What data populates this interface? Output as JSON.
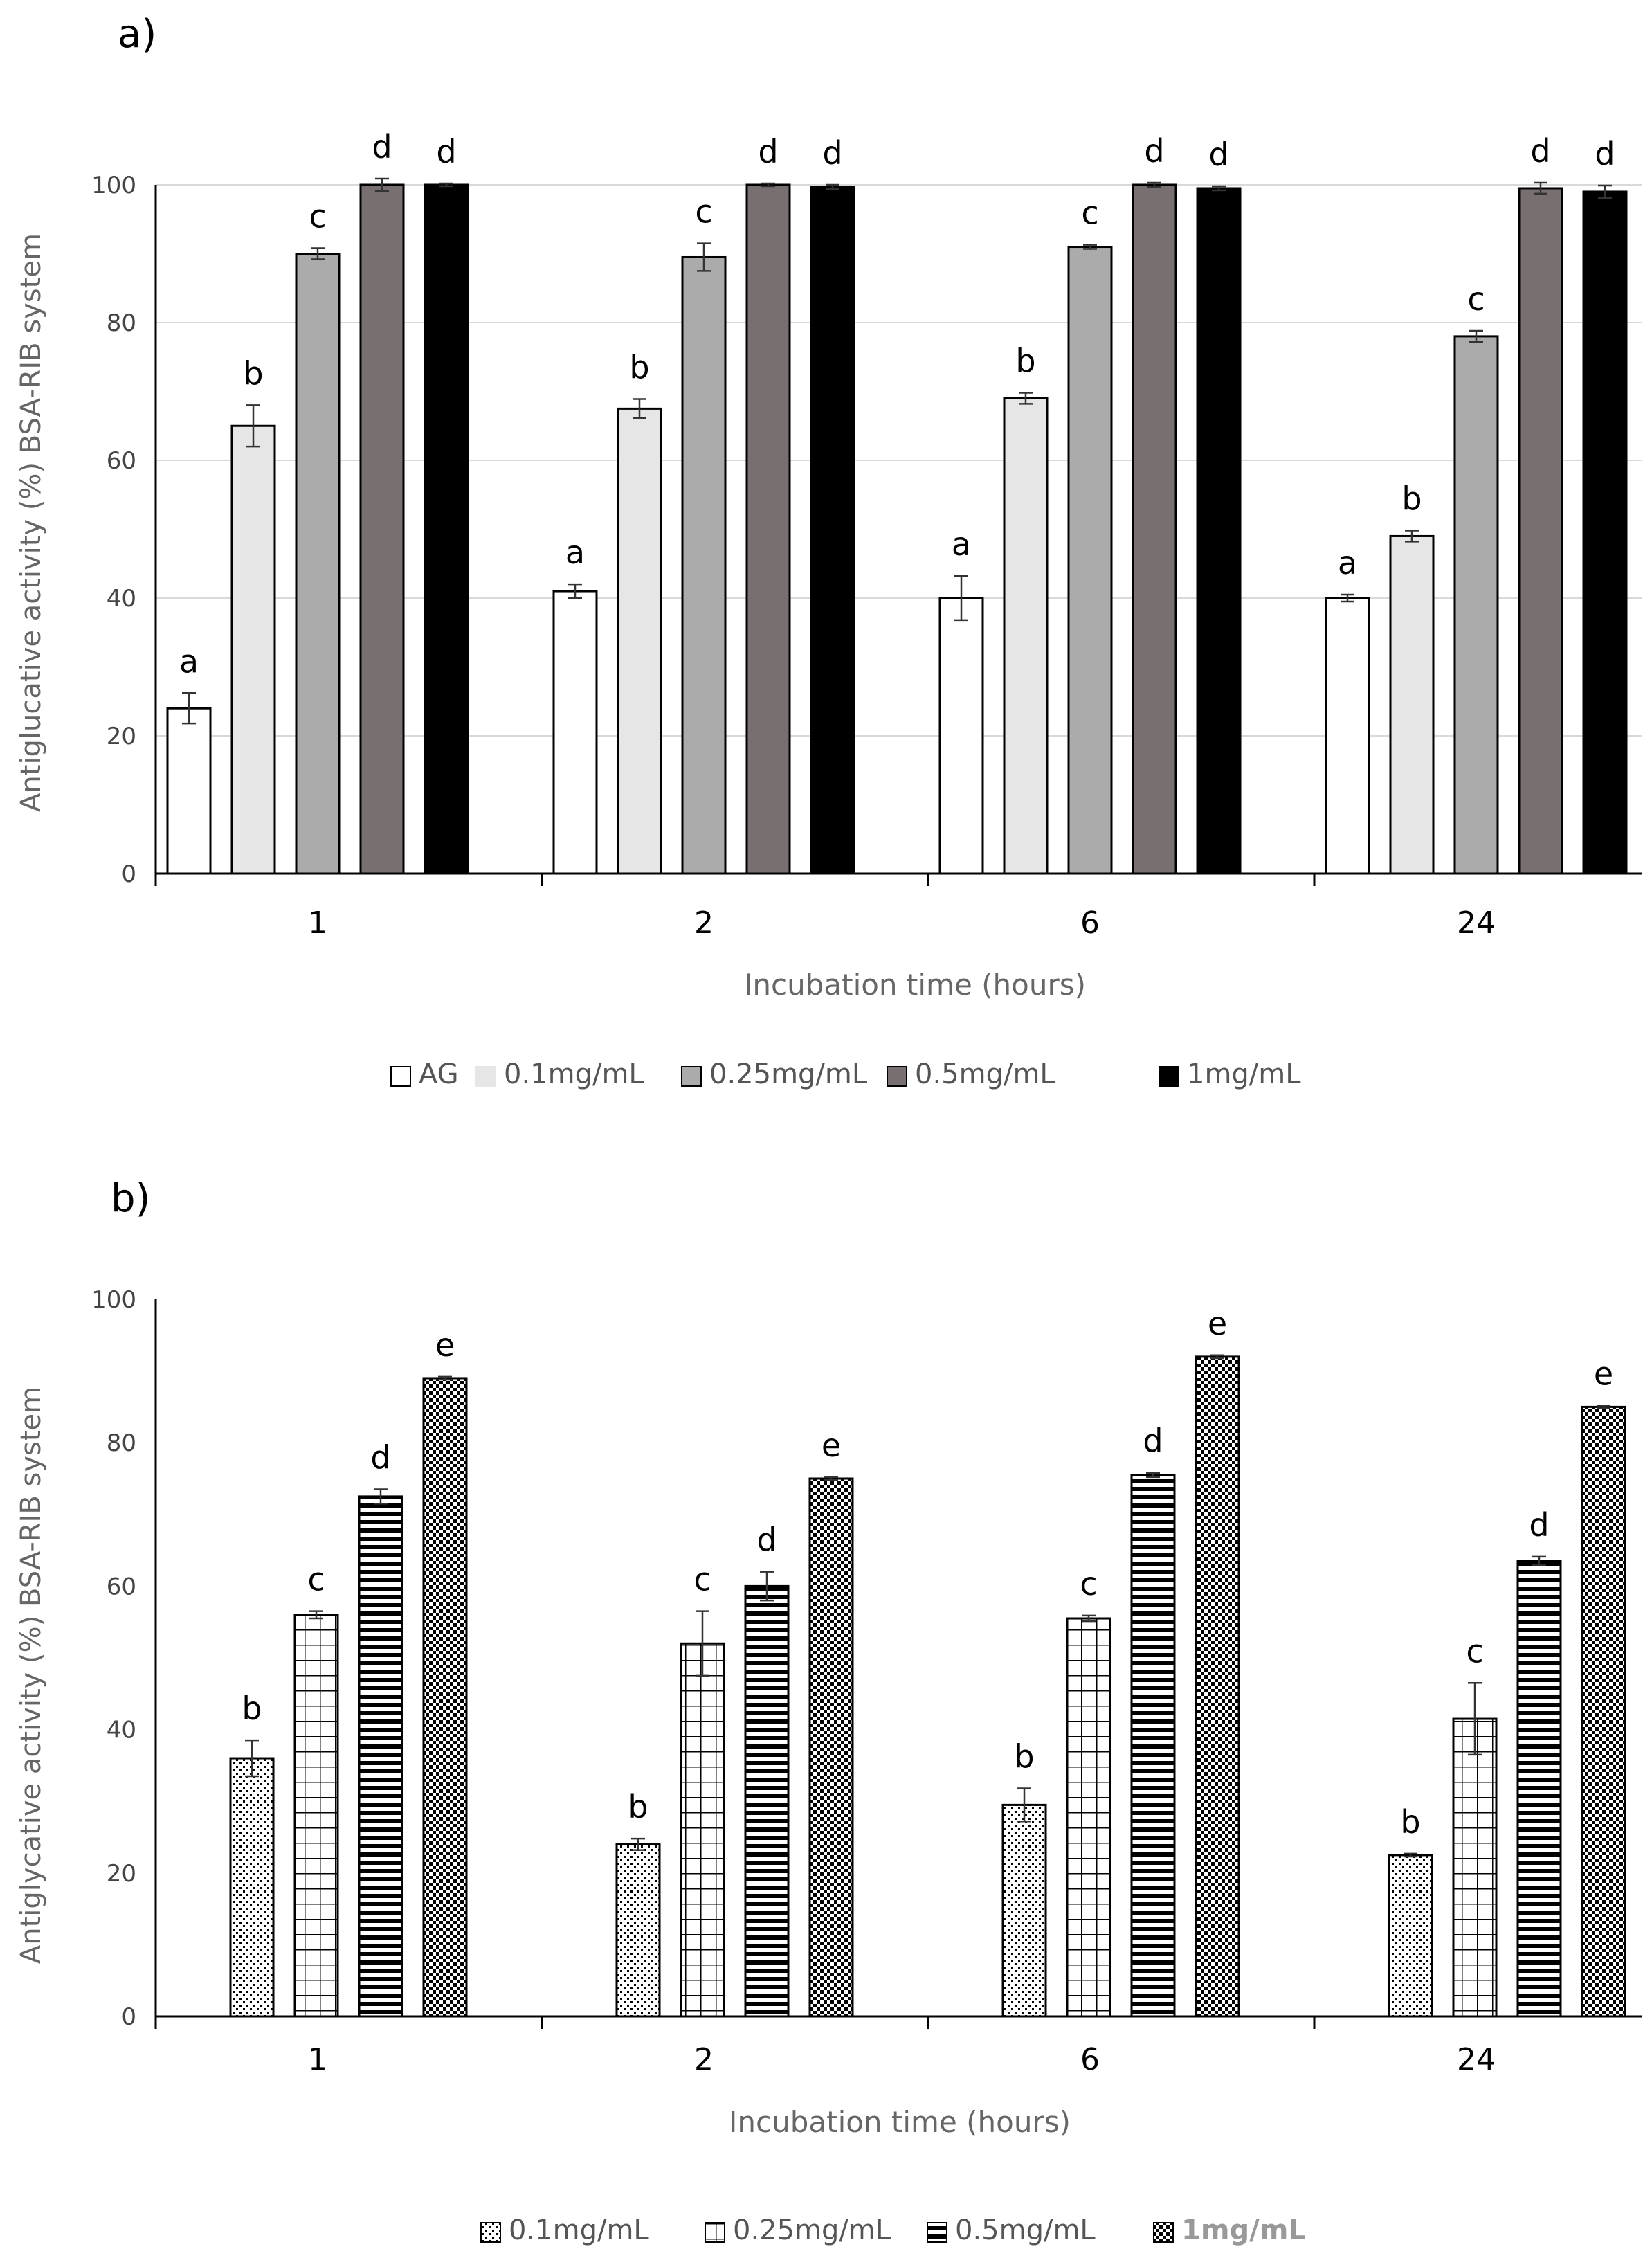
{
  "chart_data": [
    {
      "type": "bar",
      "panel_label": "a)",
      "title": "",
      "xlabel": "Incubation time (hours)",
      "ylabel": "Antiglucative activity (%) BSA-RIB system",
      "ylim": [
        0,
        100
      ],
      "yticks": [
        0,
        20,
        40,
        60,
        80,
        100
      ],
      "grid": true,
      "legend_position": "bottom",
      "categories": [
        "1",
        "2",
        "6",
        "24"
      ],
      "series": [
        {
          "name": "AG",
          "pattern": "white",
          "values": [
            24,
            41,
            40,
            40
          ],
          "errors": [
            2.2,
            1.0,
            3.2,
            0.5
          ],
          "letters": [
            "a",
            "a",
            "a",
            "a"
          ]
        },
        {
          "name": "0.1mg/mL",
          "pattern": "lightgray",
          "values": [
            65,
            67.5,
            69,
            49
          ],
          "errors": [
            3.0,
            1.4,
            0.8,
            0.8
          ],
          "letters": [
            "b",
            "b",
            "b",
            "b"
          ]
        },
        {
          "name": "0.25mg/mL",
          "pattern": "gray",
          "values": [
            90,
            89.5,
            91,
            78
          ],
          "errors": [
            0.8,
            2.0,
            0.3,
            0.8
          ],
          "letters": [
            "c",
            "c",
            "c",
            "c"
          ]
        },
        {
          "name": "0.5mg/mL",
          "pattern": "darkgray",
          "values": [
            100,
            100,
            100,
            99.5
          ],
          "errors": [
            0.9,
            0.2,
            0.3,
            0.8
          ],
          "letters": [
            "d",
            "d",
            "d",
            "d"
          ]
        },
        {
          "name": "1mg/mL",
          "pattern": "black",
          "values": [
            100,
            99.7,
            99.5,
            99
          ],
          "errors": [
            0.2,
            0.3,
            0.3,
            0.9
          ],
          "letters": [
            "d",
            "d",
            "d",
            "d"
          ]
        }
      ],
      "colors": {
        "white": "#ffffff",
        "lightgray": "#e6e6e6",
        "gray": "#ababab",
        "darkgray": "#787070",
        "black": "#000000"
      }
    },
    {
      "type": "bar",
      "panel_label": "b)",
      "title": "",
      "xlabel": "Incubation time (hours)",
      "ylabel": "Antiglycative activity (%) BSA-RIB system",
      "ylim": [
        0,
        100
      ],
      "yticks": [
        0,
        20,
        40,
        60,
        80,
        100
      ],
      "grid": false,
      "legend_position": "bottom",
      "categories": [
        "1",
        "2",
        "6",
        "24"
      ],
      "series": [
        {
          "name": "0.1mg/mL",
          "pattern": "dots",
          "values": [
            36,
            24,
            29.5,
            22.5
          ],
          "errors": [
            2.5,
            0.8,
            2.3,
            0.2
          ],
          "letters": [
            "b",
            "b",
            "b",
            "b"
          ]
        },
        {
          "name": "0.25mg/mL",
          "pattern": "grid",
          "values": [
            56,
            52,
            55.5,
            41.5
          ],
          "errors": [
            0.5,
            4.5,
            0.4,
            5.0
          ],
          "letters": [
            "c",
            "c",
            "c",
            "c"
          ]
        },
        {
          "name": "0.5mg/mL",
          "pattern": "hlines",
          "values": [
            72.5,
            60,
            75.5,
            63.5
          ],
          "errors": [
            1.0,
            2.0,
            0.3,
            0.6
          ],
          "letters": [
            "d",
            "d",
            "d",
            "d"
          ]
        },
        {
          "name": "1mg/mL",
          "pattern": "checker",
          "values": [
            89,
            75,
            92,
            85
          ],
          "errors": [
            0.2,
            0.2,
            0.2,
            0.2
          ],
          "letters": [
            "e",
            "e",
            "e",
            "e"
          ]
        }
      ]
    }
  ]
}
